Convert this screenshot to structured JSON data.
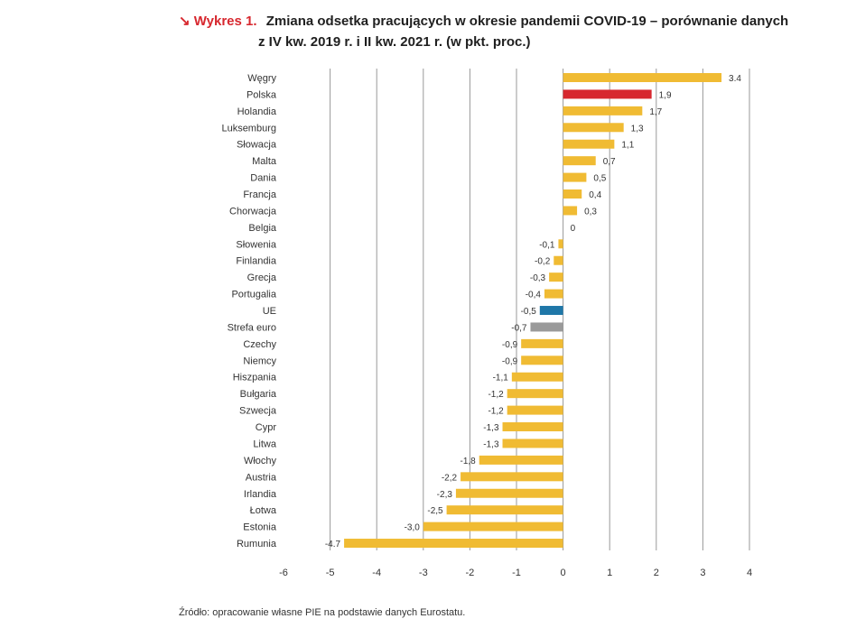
{
  "header": {
    "arrow": "↘",
    "label": "Wykres 1.",
    "title_line1": "Zmiana odsetka pracujących w okresie pandemii COVID-19 – porównanie danych",
    "title_line2": "z IV kw. 2019 r. i II kw. 2021 r. (w pkt. proc.)"
  },
  "source": "Źródło: opracowanie własne PIE na podstawie danych Eurostatu.",
  "colors": {
    "default": "#f0bb33",
    "highlight_poland": "#d7282f",
    "highlight_eu": "#1f77a8",
    "highlight_euro": "#9a9a9a",
    "grid": "#999999"
  },
  "chart_data": {
    "type": "bar",
    "orientation": "horizontal",
    "categories": [
      "Węgry",
      "Polska",
      "Holandia",
      "Luksemburg",
      "Słowacja",
      "Malta",
      "Dania",
      "Francja",
      "Chorwacja",
      "Belgia",
      "Słowenia",
      "Finlandia",
      "Grecja",
      "Portugalia",
      "UE",
      "Strefa euro",
      "Czechy",
      "Niemcy",
      "Hiszpania",
      "Bułgaria",
      "Szwecja",
      "Cypr",
      "Litwa",
      "Włochy",
      "Austria",
      "Irlandia",
      "Łotwa",
      "Estonia",
      "Rumunia"
    ],
    "values": [
      3.4,
      1.9,
      1.7,
      1.3,
      1.1,
      0.7,
      0.5,
      0.4,
      0.3,
      0,
      -0.1,
      -0.2,
      -0.3,
      -0.4,
      -0.5,
      -0.7,
      -0.9,
      -0.9,
      -1.1,
      -1.2,
      -1.2,
      -1.3,
      -1.3,
      -1.8,
      -2.2,
      -2.3,
      -2.5,
      -3.0,
      -4.7
    ],
    "value_labels": [
      "3.4",
      "1,9",
      "1,7",
      "1,3",
      "1,1",
      "0,7",
      "0,5",
      "0,4",
      "0,3",
      "0",
      "-0,1",
      "-0,2",
      "-0,3",
      "-0,4",
      "-0,5",
      "-0,7",
      "-0,9",
      "-0,9",
      "-1,1",
      "-1,2",
      "-1,2",
      "-1,3",
      "-1,3",
      "-1,8",
      "-2,2",
      "-2,3",
      "-2,5",
      "-3,0",
      "-4.7"
    ],
    "bar_colors": {
      "Polska": "#d7282f",
      "UE": "#1f77a8",
      "Strefa euro": "#9a9a9a"
    },
    "xlim": [
      -6,
      4
    ],
    "xticks": [
      -6,
      -5,
      -4,
      -3,
      -2,
      -1,
      0,
      1,
      2,
      3,
      4
    ],
    "xtick_labels": [
      "-6",
      "-5",
      "-4",
      "-3",
      "-2",
      "-1",
      "0",
      "1",
      "2",
      "3",
      "4"
    ],
    "grid": "vertical",
    "legend": "none"
  }
}
